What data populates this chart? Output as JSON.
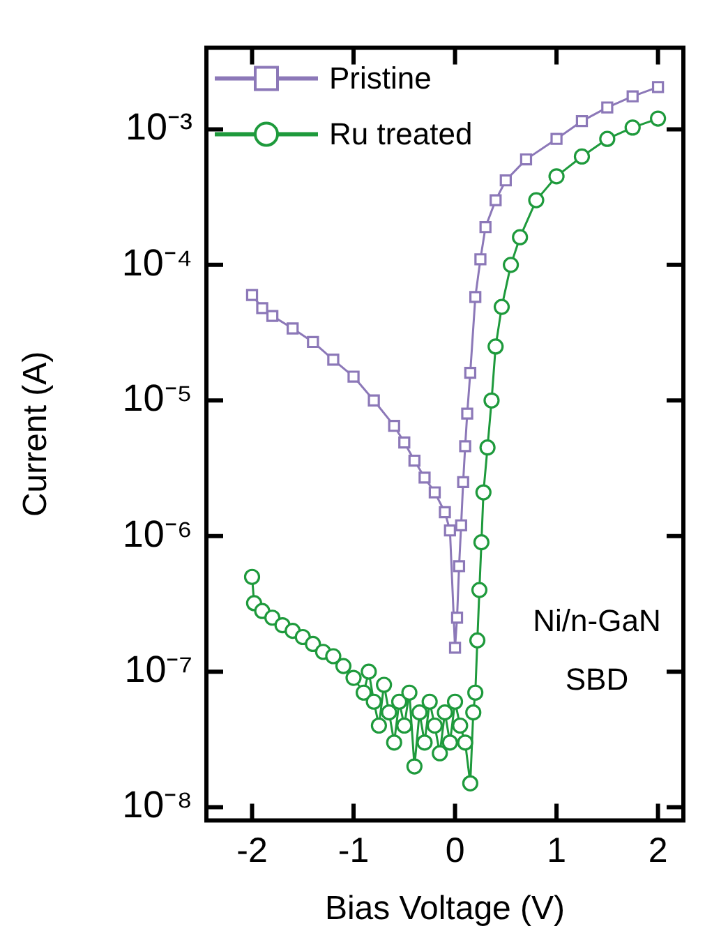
{
  "chart_data": {
    "type": "line",
    "xlabel": "Bias Voltage (V)",
    "ylabel": "Current (A)",
    "log": "y",
    "legend": "top left",
    "xlim": [
      -2.45,
      2.25
    ],
    "xticks": [
      -2,
      -1,
      0,
      1,
      2
    ],
    "ylim": [
      8e-09,
      0.004
    ],
    "yticks": [
      {
        "value": 1e-08,
        "label": "10⁻⁸"
      },
      {
        "value": 1e-07,
        "label": "10⁻⁷"
      },
      {
        "value": 1e-06,
        "label": "10⁻⁶"
      },
      {
        "value": 1e-05,
        "label": "10⁻⁵"
      },
      {
        "value": 0.0001,
        "label": "10⁻⁴"
      },
      {
        "value": 0.001,
        "label": "10⁻³"
      }
    ],
    "annotations": [
      "Ni/n-GaN",
      "SBD"
    ],
    "series": [
      {
        "name": "Pristine",
        "color": "#8c78b8",
        "marker": "square",
        "x": [
          -2,
          -1.9,
          -1.8,
          -1.6,
          -1.4,
          -1.2,
          -1,
          -0.8,
          -0.6,
          -0.5,
          -0.4,
          -0.3,
          -0.2,
          -0.1,
          -0.05,
          0,
          0.02,
          0.04,
          0.06,
          0.08,
          0.1,
          0.12,
          0.15,
          0.2,
          0.25,
          0.3,
          0.4,
          0.5,
          0.7,
          1,
          1.25,
          1.5,
          1.75,
          2
        ],
        "values": [
          6e-05,
          4.8e-05,
          4.2e-05,
          3.4e-05,
          2.7e-05,
          2e-05,
          1.5e-05,
          1e-05,
          6.5e-06,
          4.9e-06,
          3.6e-06,
          2.7e-06,
          2.1e-06,
          1.5e-06,
          1.1e-06,
          1.5e-07,
          2.5e-07,
          6e-07,
          1.2e-06,
          2.5e-06,
          4.6e-06,
          8e-06,
          1.6e-05,
          5.8e-05,
          0.00011,
          0.00019,
          0.0003,
          0.00042,
          0.0006,
          0.00085,
          0.00115,
          0.00145,
          0.00175,
          0.00205
        ]
      },
      {
        "name": "Ru treated",
        "color": "#1e9a3c",
        "marker": "circle",
        "x": [
          -2,
          -1.98,
          -1.9,
          -1.8,
          -1.7,
          -1.6,
          -1.5,
          -1.4,
          -1.3,
          -1.2,
          -1.1,
          -1,
          -0.9,
          -0.85,
          -0.8,
          -0.75,
          -0.7,
          -0.65,
          -0.6,
          -0.55,
          -0.5,
          -0.45,
          -0.4,
          -0.35,
          -0.3,
          -0.25,
          -0.2,
          -0.15,
          -0.1,
          -0.05,
          0,
          0.05,
          0.1,
          0.15,
          0.18,
          0.2,
          0.22,
          0.24,
          0.26,
          0.28,
          0.32,
          0.36,
          0.4,
          0.46,
          0.55,
          0.64,
          0.8,
          1,
          1.25,
          1.5,
          1.75,
          2
        ],
        "values": [
          5e-07,
          3.2e-07,
          2.8e-07,
          2.5e-07,
          2.2e-07,
          2e-07,
          1.8e-07,
          1.6e-07,
          1.4e-07,
          1.3e-07,
          1.1e-07,
          9e-08,
          7e-08,
          1e-07,
          6e-08,
          4e-08,
          8e-08,
          5e-08,
          3e-08,
          6e-08,
          4e-08,
          7e-08,
          2e-08,
          5e-08,
          3e-08,
          6e-08,
          4e-08,
          2.5e-08,
          5e-08,
          3e-08,
          6e-08,
          4e-08,
          3e-08,
          1.5e-08,
          5e-08,
          7e-08,
          1.7e-07,
          4e-07,
          9e-07,
          2.1e-06,
          4.5e-06,
          1e-05,
          2.5e-05,
          4.9e-05,
          0.0001,
          0.00016,
          0.0003,
          0.00045,
          0.00063,
          0.00085,
          0.00103,
          0.0012
        ]
      }
    ]
  }
}
